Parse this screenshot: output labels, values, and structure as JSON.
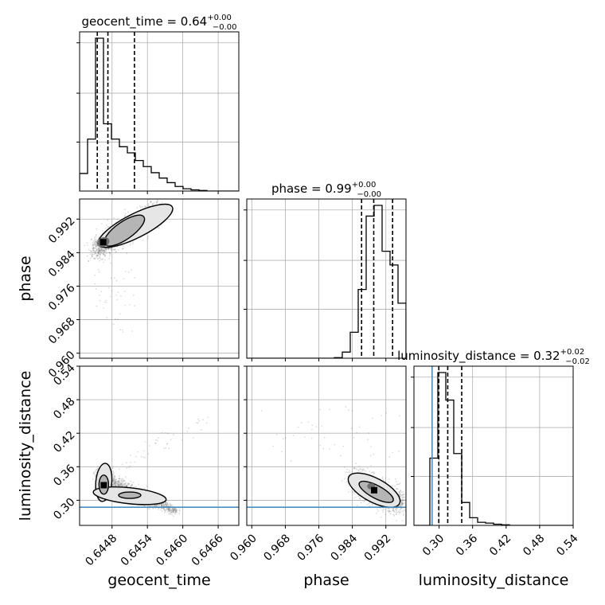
{
  "chart_data": {
    "type": "corner",
    "parameters": [
      {
        "key": "geocent_time",
        "label": "geocent_time",
        "title": {
          "text": "geocent_time = 0.64",
          "sup": "+0.00",
          "sub": "−0.00"
        },
        "range": [
          0.64425,
          0.64695
        ],
        "ticks": [
          0.6448,
          0.6454,
          0.646,
          0.6466
        ],
        "tick_labels": [
          "0.6448",
          "0.6454",
          "0.6460",
          "0.6466"
        ],
        "quantiles": [
          0.64455,
          0.64473,
          0.64518
        ],
        "truth": null,
        "hist_edges": [
          0.64425,
          0.644385,
          0.64452,
          0.644655,
          0.64479,
          0.644925,
          0.64506,
          0.645195,
          0.64533,
          0.645465,
          0.6456,
          0.645735,
          0.64587,
          0.646005,
          0.64614,
          0.646275,
          0.64641,
          0.646545,
          0.64668,
          0.646815,
          0.64695
        ],
        "hist_counts": [
          0.115,
          0.34,
          1.0,
          0.44,
          0.34,
          0.29,
          0.25,
          0.2,
          0.16,
          0.12,
          0.085,
          0.055,
          0.03,
          0.015,
          0.008,
          0.004,
          0,
          0,
          0,
          0
        ]
      },
      {
        "key": "phase",
        "label": "phase",
        "title": {
          "text": "phase = 0.99",
          "sup": "+0.00",
          "sub": "−0.00"
        },
        "range": [
          0.9588,
          0.9968
        ],
        "ticks": [
          0.96,
          0.968,
          0.976,
          0.984,
          0.992
        ],
        "tick_labels": [
          "0.960",
          "0.968",
          "0.976",
          "0.984",
          "0.992"
        ],
        "quantiles": [
          0.9862,
          0.9891,
          0.9936
        ],
        "truth": null,
        "hist_edges": [
          0.9588,
          0.9607,
          0.9626,
          0.9645,
          0.9664,
          0.9683,
          0.9702,
          0.9721,
          0.974,
          0.9759,
          0.9778,
          0.9797,
          0.9816,
          0.9835,
          0.9854,
          0.9873,
          0.9892,
          0.9911,
          0.993,
          0.9949,
          0.9968
        ],
        "hist_counts": [
          0,
          0,
          0,
          0,
          0,
          0,
          0,
          0,
          0,
          0,
          0,
          0.004,
          0.04,
          0.17,
          0.45,
          0.93,
          1.0,
          0.7,
          0.61,
          0.36
        ]
      },
      {
        "key": "luminosity_distance",
        "label": "luminosity_distance",
        "title": {
          "text": "luminosity_distance = 0.32",
          "sup": "+0.02",
          "sub": "−0.02"
        },
        "range": [
          0.255,
          0.54
        ],
        "ticks": [
          0.3,
          0.36,
          0.42,
          0.48,
          0.54
        ],
        "tick_labels": [
          "0.30",
          "0.36",
          "0.42",
          "0.48",
          "0.54"
        ],
        "quantiles": [
          0.2995,
          0.3155,
          0.3405
        ],
        "truth": 0.2875,
        "hist_edges": [
          0.255,
          0.26925,
          0.2835,
          0.29775,
          0.312,
          0.32625,
          0.3405,
          0.35475,
          0.369,
          0.38325,
          0.3975,
          0.41175,
          0.426,
          0.44025,
          0.4545,
          0.46875,
          0.483,
          0.49725,
          0.5115,
          0.52575,
          0.54
        ],
        "hist_counts": [
          0,
          0,
          0.44,
          1.0,
          0.82,
          0.47,
          0.15,
          0.05,
          0.02,
          0.015,
          0.008,
          0.004,
          0,
          0,
          0,
          0,
          0,
          0,
          0,
          0
        ]
      }
    ],
    "grid": true,
    "colors": {
      "hist": "#000000",
      "quantile": "#000000",
      "truth": "#4c8ebd",
      "samples": "#5a5a5a",
      "grid": "#b0b0b0"
    }
  }
}
